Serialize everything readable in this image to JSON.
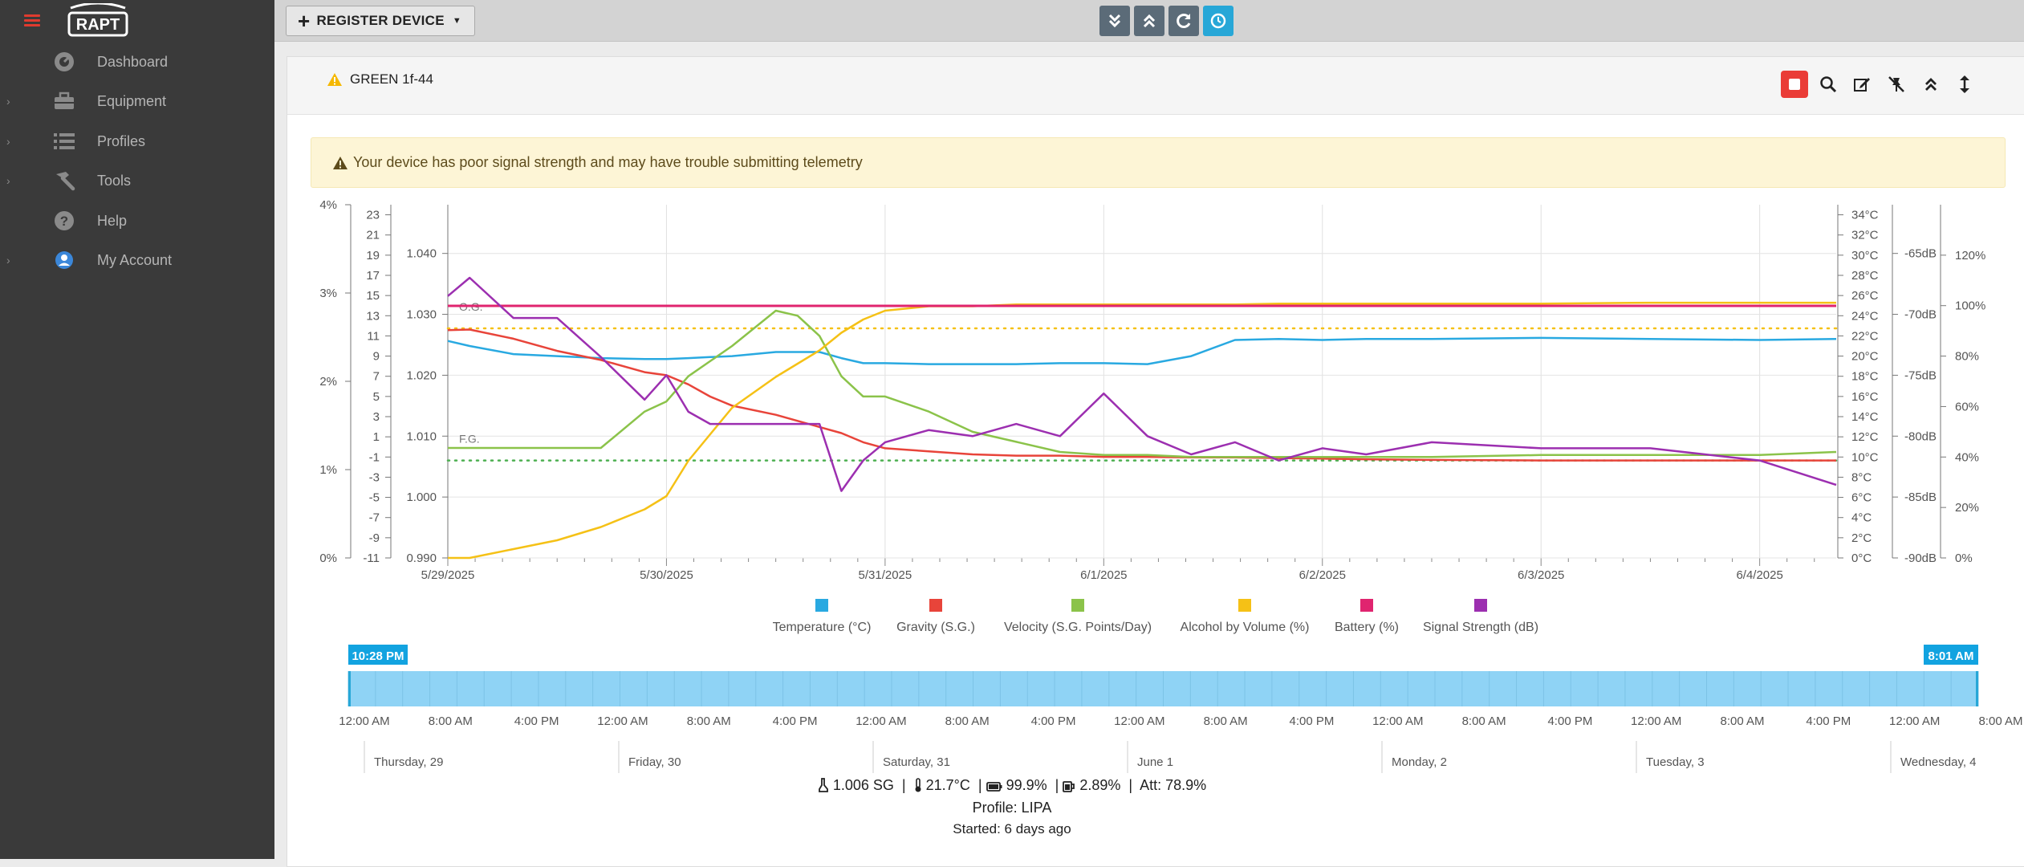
{
  "app": {
    "name": "RAPT"
  },
  "sidebar": {
    "items": [
      {
        "label": "Dashboard",
        "icon": "dashboard-gauge-icon",
        "expandable": false
      },
      {
        "label": "Equipment",
        "icon": "toolbox-icon",
        "expandable": true
      },
      {
        "label": "Profiles",
        "icon": "list-icon",
        "expandable": true
      },
      {
        "label": "Tools",
        "icon": "hammer-icon",
        "expandable": true
      },
      {
        "label": "Help",
        "icon": "question-circle-icon",
        "expandable": false
      },
      {
        "label": "My Account",
        "icon": "user-circle-icon",
        "expandable": true
      }
    ]
  },
  "topbar": {
    "register_label": "REGISTER DEVICE"
  },
  "device": {
    "name": "GREEN 1f-44",
    "status_icon": "warning-triangle-icon"
  },
  "alert": {
    "text": "Your device has poor signal strength and may have trouble submitting telemetry"
  },
  "colors": {
    "temperature": "#29a9e1",
    "gravity": "#e8443a",
    "velocity": "#8bc34a",
    "abv": "#f5c116",
    "battery": "#e0246f",
    "signal": "#9c2fb0",
    "og_line": "#f5c116",
    "fg_line": "#4caf50",
    "navigator": "#8fd3f5"
  },
  "chart_data": {
    "type": "line",
    "x_ticks": [
      "5/29/2025",
      "5/30/2025",
      "5/31/2025",
      "6/1/2025",
      "6/2/2025",
      "6/3/2025",
      "6/4/2025"
    ],
    "axes": {
      "abv": {
        "ticks": [
          "0%",
          "1%",
          "2%",
          "3%",
          "4%"
        ],
        "range": [
          0,
          4
        ]
      },
      "velocity": {
        "ticks": [
          "-11",
          "-9",
          "-7",
          "-5",
          "-3",
          "-1",
          "1",
          "3",
          "5",
          "7",
          "9",
          "11",
          "13",
          "15",
          "17",
          "19",
          "21",
          "23"
        ],
        "range": [
          -11,
          24
        ]
      },
      "gravity": {
        "ticks": [
          "0.990",
          "1.000",
          "1.010",
          "1.020",
          "1.030",
          "1.040"
        ],
        "range": [
          0.99,
          1.048
        ]
      },
      "temperature": {
        "ticks": [
          "0°C",
          "2°C",
          "4°C",
          "6°C",
          "8°C",
          "10°C",
          "12°C",
          "14°C",
          "16°C",
          "18°C",
          "20°C",
          "22°C",
          "24°C",
          "26°C",
          "28°C",
          "30°C",
          "32°C",
          "34°C"
        ],
        "range": [
          0,
          35
        ]
      },
      "signal": {
        "ticks": [
          "-90dB",
          "-85dB",
          "-80dB",
          "-75dB",
          "-70dB",
          "-65dB"
        ],
        "range": [
          -90,
          -61
        ]
      },
      "battery": {
        "ticks": [
          "0%",
          "20%",
          "40%",
          "60%",
          "80%",
          "100%",
          "120%"
        ],
        "range": [
          0,
          140
        ]
      }
    },
    "reference_lines": [
      {
        "label": "O.G.",
        "axis": "gravity",
        "value": 1.0277
      },
      {
        "label": "F.G.",
        "axis": "gravity",
        "value": 1.006
      }
    ],
    "legend": [
      "Temperature (°C)",
      "Gravity (S.G.)",
      "Velocity (S.G. Points/Day)",
      "Alcohol by Volume (%)",
      "Battery (%)",
      "Signal Strength (dB)"
    ],
    "x": [
      0,
      0.1,
      0.3,
      0.5,
      0.7,
      0.9,
      1.0,
      1.1,
      1.2,
      1.3,
      1.5,
      1.6,
      1.7,
      1.8,
      1.9,
      2.0,
      2.2,
      2.4,
      2.6,
      2.8,
      3.0,
      3.2,
      3.4,
      3.6,
      3.8,
      4.0,
      4.2,
      4.5,
      5.0,
      5.5,
      6.0,
      6.35
    ],
    "series": [
      {
        "name": "Temperature (°C)",
        "axis": "temperature",
        "values": [
          21.5,
          21.0,
          20.2,
          20.0,
          19.8,
          19.7,
          19.7,
          19.8,
          19.9,
          20.0,
          20.4,
          20.4,
          20.4,
          19.8,
          19.3,
          19.3,
          19.2,
          19.2,
          19.2,
          19.3,
          19.3,
          19.2,
          20.0,
          21.6,
          21.7,
          21.6,
          21.7,
          21.7,
          21.8,
          21.7,
          21.6,
          21.7
        ]
      },
      {
        "name": "Gravity (S.G.)",
        "axis": "gravity",
        "values": [
          1.0274,
          1.0275,
          1.026,
          1.024,
          1.0225,
          1.0205,
          1.02,
          1.0185,
          1.0165,
          1.015,
          1.0135,
          1.0125,
          1.0115,
          1.0105,
          1.009,
          1.008,
          1.0075,
          1.007,
          1.0068,
          1.0068,
          1.0066,
          1.0066,
          1.0065,
          1.0065,
          1.0064,
          1.0063,
          1.0062,
          1.0061,
          1.006,
          1.006,
          1.006,
          1.006
        ]
      },
      {
        "name": "Velocity (S.G. Points/Day)",
        "axis": "velocity",
        "values": [
          -0.1,
          -0.1,
          -0.1,
          -0.1,
          -0.1,
          3.5,
          4.5,
          7.0,
          8.5,
          10.0,
          13.5,
          13.0,
          11.0,
          7.0,
          5.0,
          5.0,
          3.5,
          1.5,
          0.5,
          -0.5,
          -0.8,
          -0.8,
          -1.0,
          -1.0,
          -1.0,
          -1.0,
          -1.0,
          -1.0,
          -0.8,
          -0.8,
          -0.8,
          -0.5
        ]
      },
      {
        "name": "Alcohol by Volume (%)",
        "axis": "abv",
        "values": [
          0.0,
          0.0,
          0.1,
          0.2,
          0.35,
          0.55,
          0.7,
          1.1,
          1.4,
          1.7,
          2.05,
          2.2,
          2.35,
          2.55,
          2.7,
          2.8,
          2.85,
          2.85,
          2.87,
          2.87,
          2.87,
          2.87,
          2.87,
          2.87,
          2.88,
          2.88,
          2.88,
          2.88,
          2.88,
          2.89,
          2.89,
          2.89
        ]
      },
      {
        "name": "Battery (%)",
        "axis": "battery",
        "values": [
          99.9,
          99.9,
          99.9,
          99.9,
          99.9,
          99.9,
          99.9,
          99.9,
          99.9,
          99.9,
          99.9,
          99.9,
          99.9,
          99.9,
          99.9,
          99.9,
          99.9,
          99.9,
          99.9,
          99.9,
          99.9,
          99.9,
          99.9,
          99.9,
          99.9,
          99.9,
          99.9,
          99.9,
          99.9,
          99.9,
          99.9,
          99.9
        ]
      },
      {
        "name": "Signal Strength (dB)",
        "axis": "signal",
        "values": [
          -68.5,
          -67.0,
          -70.3,
          -70.3,
          -73.5,
          -77.0,
          -75.0,
          -78.0,
          -79.0,
          -79.0,
          -79.0,
          -79.0,
          -79.0,
          -84.5,
          -82.0,
          -80.5,
          -79.5,
          -80.0,
          -79.0,
          -80.0,
          -76.5,
          -80.0,
          -81.5,
          -80.5,
          -82.0,
          -81.0,
          -81.5,
          -80.5,
          -81.0,
          -81.0,
          -82.0,
          -84.0
        ]
      }
    ]
  },
  "navigator": {
    "start_label": "10:28 PM",
    "end_label": "8:01 AM",
    "time_ticks": [
      "12:00 AM",
      "8:00 AM",
      "4:00 PM",
      "12:00 AM",
      "8:00 AM",
      "4:00 PM",
      "12:00 AM",
      "8:00 AM",
      "4:00 PM",
      "12:00 AM",
      "8:00 AM",
      "4:00 PM",
      "12:00 AM",
      "8:00 AM",
      "4:00 PM",
      "12:00 AM",
      "8:00 AM",
      "4:00 PM",
      "12:00 AM",
      "8:00 AM"
    ],
    "day_labels": [
      "Thursday, 29",
      "Friday, 30",
      "Saturday, 31",
      "June 1",
      "Monday, 2",
      "Tuesday, 3",
      "Wednesday, 4"
    ]
  },
  "summary": {
    "gravity": "1.006 SG",
    "temperature": "21.7°C",
    "battery": "99.9%",
    "abv": "2.89%",
    "attenuation": "Att: 78.9%",
    "profile": "Profile: LIPA",
    "started": "Started: 6 days ago"
  }
}
